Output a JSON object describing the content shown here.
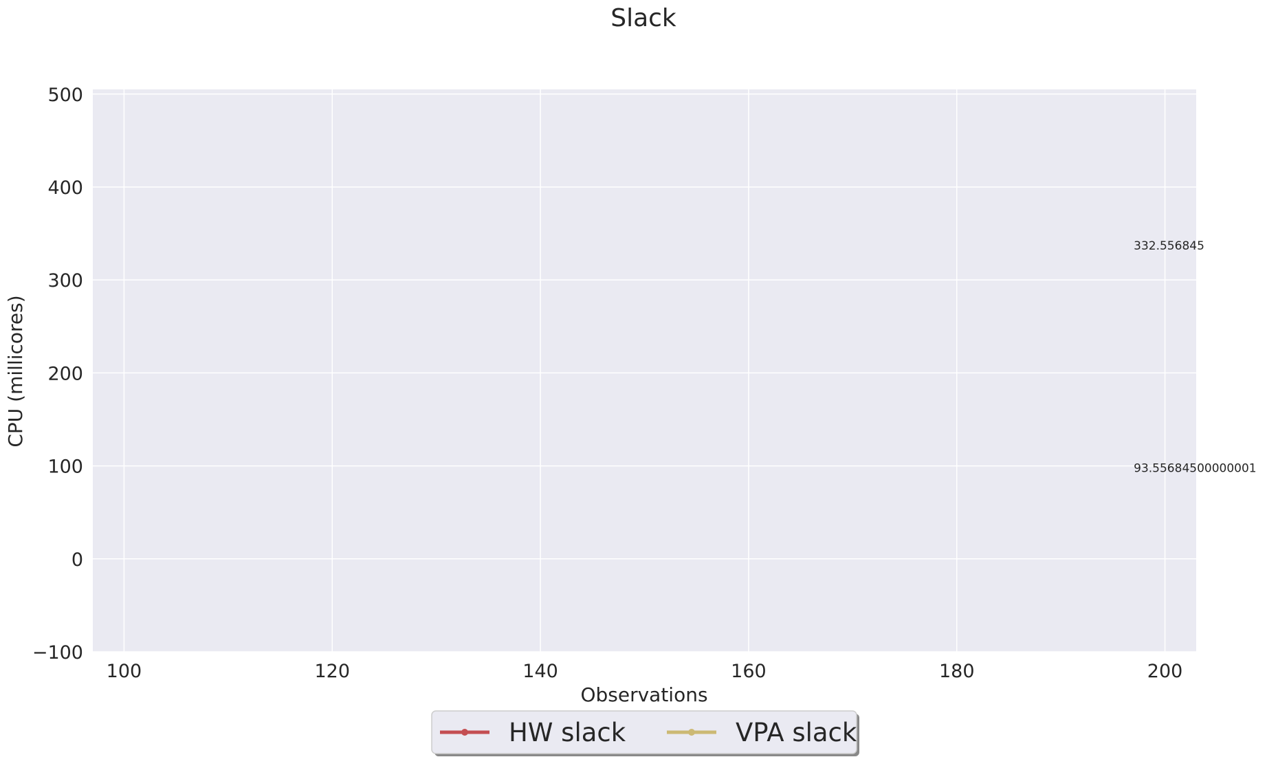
{
  "chart_data": {
    "type": "line",
    "title": "Slack",
    "xlabel": "Observations",
    "ylabel": "CPU (millicores)",
    "xlim": [
      97,
      203
    ],
    "ylim": [
      -100,
      505
    ],
    "xticks": [
      100,
      120,
      140,
      160,
      180,
      200
    ],
    "yticks": [
      -100,
      0,
      100,
      200,
      300,
      400,
      500
    ],
    "grid": true,
    "legend_position": "bottom-center",
    "series": [
      {
        "name": "HW slack",
        "color": "#c44e52",
        "marker": "circle",
        "x": [],
        "values": []
      },
      {
        "name": "VPA slack",
        "color": "#ccb974",
        "marker": "circle",
        "x": [],
        "values": []
      }
    ],
    "annotations": [
      {
        "text": "332.556845",
        "x": 197,
        "y": 332.556845
      },
      {
        "text": "93.55684500000001",
        "x": 197,
        "y": 93.55684500000001
      }
    ],
    "background": "#eaeaf2",
    "gridcolor": "#ffffff"
  }
}
